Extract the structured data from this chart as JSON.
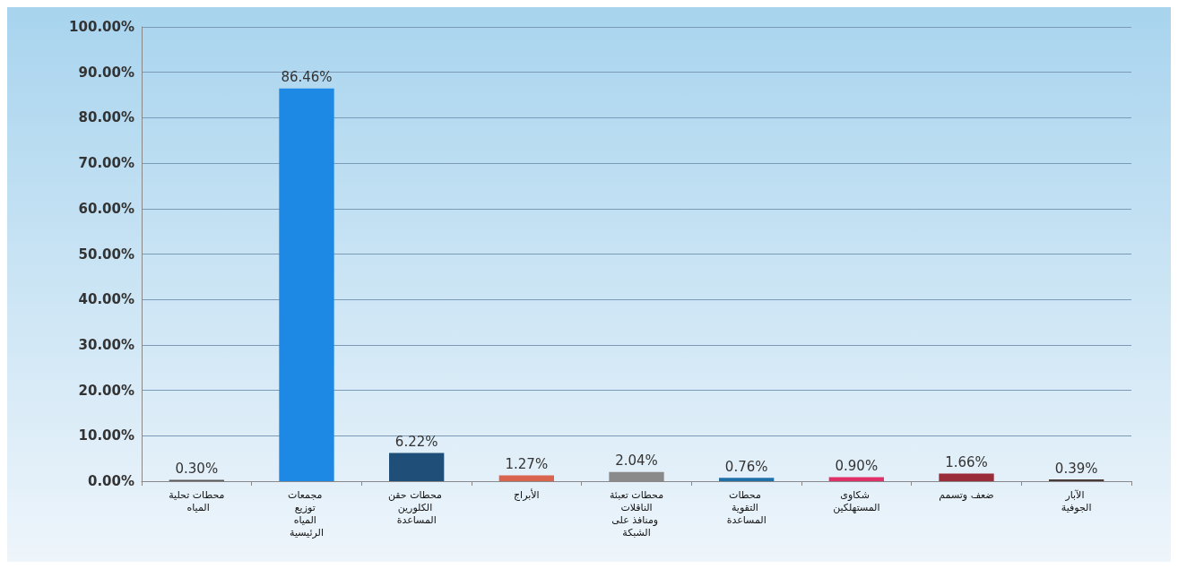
{
  "chart_data": {
    "type": "bar",
    "categories": [
      "محطات تحلية المياه",
      "مجمعات توزيع المياه الرئيسية",
      "محطات حقن الكلورين المساعدة",
      "الأبراج",
      "محطات تعبئة الناقلات ومنافذ على الشبكة",
      "محطات التقوية المساعدة",
      "شكاوى المستهلكين",
      "ضعف وتسمم",
      "الآبار الجوفية"
    ],
    "values": [
      0.3,
      86.46,
      6.22,
      1.27,
      2.04,
      0.76,
      0.9,
      1.66,
      0.39
    ],
    "colors": [
      "#5a5a5a",
      "#1e88e5",
      "#1f4e79",
      "#d9644f",
      "#8a8a8a",
      "#1f6fa8",
      "#e0306a",
      "#9b2d3b",
      "#4a3a3a"
    ],
    "value_labels": [
      "0.30%",
      "86.46%",
      "6.22%",
      "1.27%",
      "2.04%",
      "0.76%",
      "0.90%",
      "1.66%",
      "0.39%"
    ],
    "ylim": [
      0,
      100
    ],
    "yticks": [
      {
        "value": 0,
        "label": "0.00%"
      },
      {
        "value": 10,
        "label": "10.00%"
      },
      {
        "value": 20,
        "label": "20.00%"
      },
      {
        "value": 30,
        "label": "30.00%"
      },
      {
        "value": 40,
        "label": "40.00%"
      },
      {
        "value": 50,
        "label": "50.00%"
      },
      {
        "value": 60,
        "label": "60.00%"
      },
      {
        "value": 70,
        "label": "70.00%"
      },
      {
        "value": 80,
        "label": "80.00%"
      },
      {
        "value": 90,
        "label": "90.00%"
      },
      {
        "value": 100,
        "label": "100.00%"
      }
    ],
    "grid": "y"
  }
}
